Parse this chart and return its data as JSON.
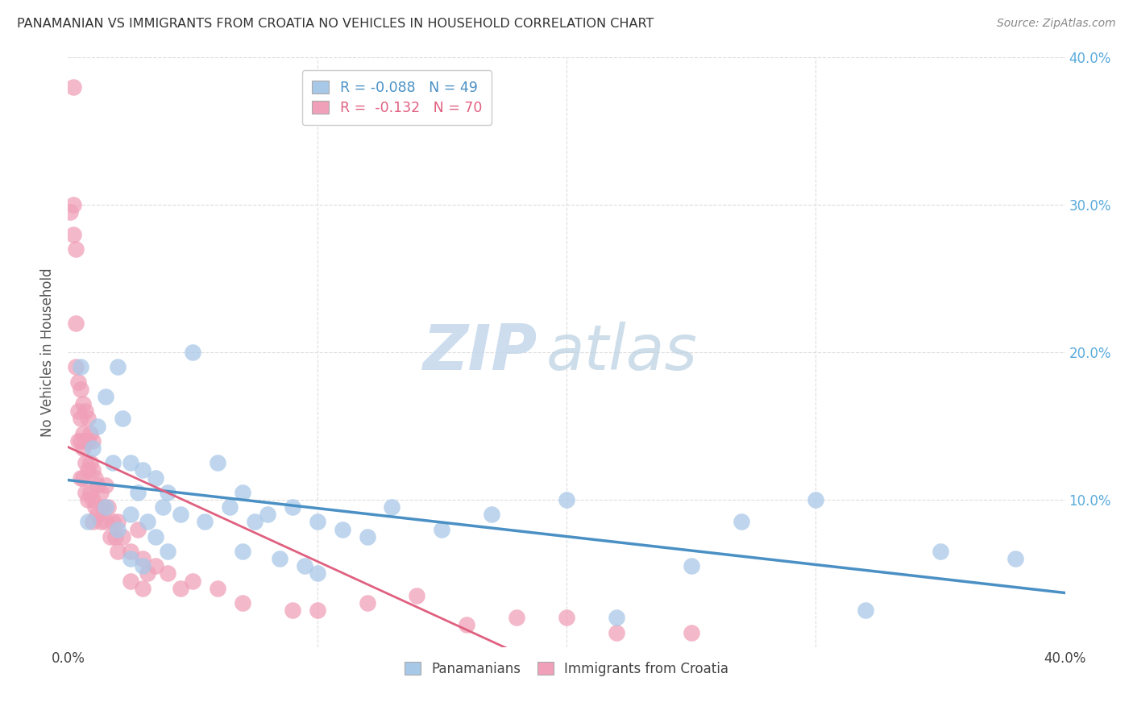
{
  "title": "PANAMANIAN VS IMMIGRANTS FROM CROATIA NO VEHICLES IN HOUSEHOLD CORRELATION CHART",
  "source": "Source: ZipAtlas.com",
  "ylabel": "No Vehicles in Household",
  "xmin": 0.0,
  "xmax": 0.4,
  "ymin": 0.0,
  "ymax": 0.4,
  "xticks": [
    0.0,
    0.1,
    0.2,
    0.3,
    0.4
  ],
  "yticks": [
    0.0,
    0.1,
    0.2,
    0.3,
    0.4
  ],
  "blue_R": -0.088,
  "blue_N": 49,
  "pink_R": -0.132,
  "pink_N": 70,
  "blue_color": "#a8c8e8",
  "pink_color": "#f0a0b8",
  "blue_line_color": "#4a90c4",
  "pink_line_color": "#e06080",
  "legend1_label": "Panamanians",
  "legend2_label": "Immigrants from Croatia",
  "watermark_zip": "ZIP",
  "watermark_atlas": "atlas",
  "background_color": "#ffffff",
  "grid_color": "#dddddd",
  "title_color": "#333333",
  "axis_label_color": "#555555",
  "right_axis_color": "#5aabdc",
  "blue_scatter_x": [
    0.005,
    0.008,
    0.01,
    0.012,
    0.015,
    0.015,
    0.018,
    0.02,
    0.02,
    0.022,
    0.025,
    0.025,
    0.025,
    0.028,
    0.03,
    0.03,
    0.032,
    0.035,
    0.035,
    0.038,
    0.04,
    0.04,
    0.045,
    0.05,
    0.055,
    0.06,
    0.065,
    0.07,
    0.07,
    0.075,
    0.08,
    0.085,
    0.09,
    0.095,
    0.1,
    0.1,
    0.11,
    0.12,
    0.13,
    0.15,
    0.17,
    0.2,
    0.22,
    0.25,
    0.27,
    0.3,
    0.32,
    0.35,
    0.38
  ],
  "blue_scatter_y": [
    0.19,
    0.085,
    0.135,
    0.15,
    0.17,
    0.095,
    0.125,
    0.19,
    0.08,
    0.155,
    0.125,
    0.09,
    0.06,
    0.105,
    0.12,
    0.055,
    0.085,
    0.115,
    0.075,
    0.095,
    0.105,
    0.065,
    0.09,
    0.2,
    0.085,
    0.125,
    0.095,
    0.105,
    0.065,
    0.085,
    0.09,
    0.06,
    0.095,
    0.055,
    0.085,
    0.05,
    0.08,
    0.075,
    0.095,
    0.08,
    0.09,
    0.1,
    0.02,
    0.055,
    0.085,
    0.1,
    0.025,
    0.065,
    0.06
  ],
  "pink_scatter_x": [
    0.001,
    0.002,
    0.002,
    0.002,
    0.003,
    0.003,
    0.003,
    0.004,
    0.004,
    0.004,
    0.005,
    0.005,
    0.005,
    0.005,
    0.006,
    0.006,
    0.006,
    0.006,
    0.007,
    0.007,
    0.007,
    0.007,
    0.008,
    0.008,
    0.008,
    0.008,
    0.009,
    0.009,
    0.009,
    0.01,
    0.01,
    0.01,
    0.01,
    0.011,
    0.011,
    0.012,
    0.012,
    0.013,
    0.013,
    0.014,
    0.015,
    0.015,
    0.016,
    0.017,
    0.018,
    0.019,
    0.02,
    0.02,
    0.022,
    0.025,
    0.025,
    0.028,
    0.03,
    0.03,
    0.032,
    0.035,
    0.04,
    0.045,
    0.05,
    0.06,
    0.07,
    0.09,
    0.1,
    0.12,
    0.14,
    0.16,
    0.18,
    0.2,
    0.22,
    0.25
  ],
  "pink_scatter_y": [
    0.295,
    0.38,
    0.3,
    0.28,
    0.27,
    0.22,
    0.19,
    0.18,
    0.16,
    0.14,
    0.175,
    0.155,
    0.14,
    0.115,
    0.165,
    0.145,
    0.135,
    0.115,
    0.16,
    0.14,
    0.125,
    0.105,
    0.155,
    0.14,
    0.12,
    0.1,
    0.145,
    0.125,
    0.105,
    0.14,
    0.12,
    0.1,
    0.085,
    0.115,
    0.095,
    0.11,
    0.09,
    0.105,
    0.085,
    0.095,
    0.11,
    0.085,
    0.095,
    0.075,
    0.085,
    0.075,
    0.085,
    0.065,
    0.075,
    0.065,
    0.045,
    0.08,
    0.06,
    0.04,
    0.05,
    0.055,
    0.05,
    0.04,
    0.045,
    0.04,
    0.03,
    0.025,
    0.025,
    0.03,
    0.035,
    0.015,
    0.02,
    0.02,
    0.01,
    0.01
  ]
}
